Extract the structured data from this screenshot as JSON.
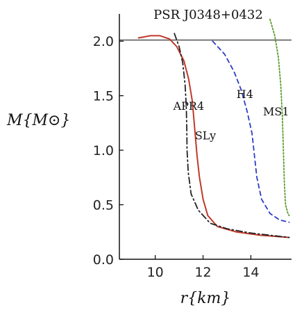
{
  "chart_data": {
    "type": "line",
    "xlabel": "r{km}",
    "ylabel": "M{M⊙}",
    "xlim": [
      8.5,
      15.7
    ],
    "ylim": [
      0,
      2.25
    ],
    "grid": false,
    "xticks": [
      10,
      12,
      14
    ],
    "yticks": [
      0.0,
      0.5,
      1.0,
      1.5,
      2.0
    ],
    "tick_format": {
      "x": 0,
      "y": 1
    },
    "reference_line": {
      "label": "PSR J0348+0432",
      "y": 2.01,
      "color": "#777777"
    },
    "series": [
      {
        "name": "SLy",
        "color": "#c0392b",
        "dash": "solid",
        "points": [
          [
            9.3,
            2.03
          ],
          [
            9.8,
            2.05
          ],
          [
            10.2,
            2.05
          ],
          [
            10.6,
            2.02
          ],
          [
            10.9,
            1.95
          ],
          [
            11.2,
            1.82
          ],
          [
            11.4,
            1.65
          ],
          [
            11.55,
            1.45
          ],
          [
            11.65,
            1.2
          ],
          [
            11.75,
            0.95
          ],
          [
            11.85,
            0.75
          ],
          [
            12.0,
            0.55
          ],
          [
            12.2,
            0.4
          ],
          [
            12.6,
            0.3
          ],
          [
            13.4,
            0.25
          ],
          [
            14.4,
            0.22
          ],
          [
            15.6,
            0.2
          ]
        ]
      },
      {
        "name": "APR4",
        "color": "#222222",
        "dash": "9 4 2 4",
        "points": [
          [
            10.8,
            2.07
          ],
          [
            11.0,
            1.95
          ],
          [
            11.15,
            1.8
          ],
          [
            11.25,
            1.6
          ],
          [
            11.3,
            1.4
          ],
          [
            11.32,
            1.2
          ],
          [
            11.33,
            1.0
          ],
          [
            11.38,
            0.8
          ],
          [
            11.5,
            0.6
          ],
          [
            11.8,
            0.45
          ],
          [
            12.3,
            0.33
          ],
          [
            13.0,
            0.28
          ],
          [
            14.0,
            0.24
          ],
          [
            15.6,
            0.2
          ]
        ]
      },
      {
        "name": "H4",
        "color": "#2b3cc4",
        "dash": "6 5",
        "points": [
          [
            12.4,
            2.0
          ],
          [
            12.9,
            1.88
          ],
          [
            13.3,
            1.72
          ],
          [
            13.6,
            1.55
          ],
          [
            13.85,
            1.35
          ],
          [
            14.05,
            1.15
          ],
          [
            14.15,
            0.95
          ],
          [
            14.25,
            0.75
          ],
          [
            14.45,
            0.55
          ],
          [
            14.8,
            0.42
          ],
          [
            15.2,
            0.36
          ],
          [
            15.6,
            0.34
          ]
        ]
      },
      {
        "name": "MS1",
        "color": "#5a9a2a",
        "dash": "2 2.5",
        "points": [
          [
            14.8,
            2.2
          ],
          [
            15.0,
            2.05
          ],
          [
            15.15,
            1.85
          ],
          [
            15.25,
            1.6
          ],
          [
            15.32,
            1.3
          ],
          [
            15.36,
            1.0
          ],
          [
            15.4,
            0.7
          ],
          [
            15.45,
            0.5
          ],
          [
            15.55,
            0.42
          ],
          [
            15.6,
            0.4
          ]
        ]
      }
    ],
    "labels": [
      {
        "series": "APR4",
        "text": "APR4",
        "x": 11.4,
        "y": 1.37
      },
      {
        "series": "SLy",
        "text": "SLy",
        "x": 12.1,
        "y": 1.1
      },
      {
        "series": "H4",
        "text": "H4",
        "x": 13.75,
        "y": 1.48
      },
      {
        "series": "MS1",
        "text": "MS1",
        "x": 15.6,
        "y": 1.32
      }
    ]
  }
}
